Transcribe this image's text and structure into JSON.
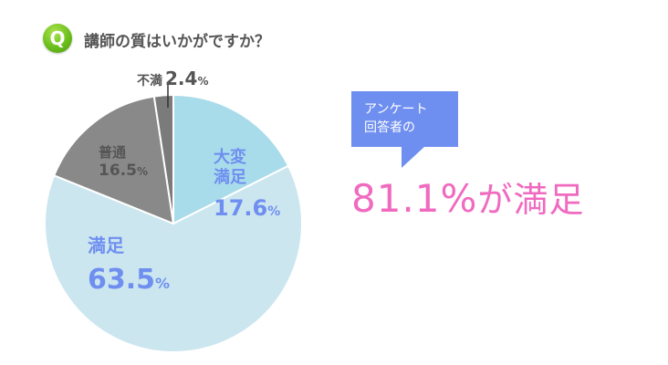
{
  "header": {
    "badge": "Q",
    "question": "講師の質はいかがですか？"
  },
  "chart_data": {
    "type": "pie",
    "title": "",
    "slices": [
      {
        "label": "大変満足",
        "value": 17.6,
        "color": "#a8dcea"
      },
      {
        "label": "満足",
        "value": 63.5,
        "color": "#cce6ef"
      },
      {
        "label": "普通",
        "value": 16.5,
        "color": "#898989"
      },
      {
        "label": "不満",
        "value": 2.4,
        "color": "#7b7b7b"
      }
    ]
  },
  "labels": {
    "very_satisfied": {
      "name_line1": "大変",
      "name_line2": "満足",
      "value": "17.6",
      "unit": "%"
    },
    "satisfied": {
      "name": "満足",
      "value": "63.5",
      "unit": "%"
    },
    "normal": {
      "name": "普通",
      "value": "16.5",
      "unit": "%"
    },
    "unsatisfied": {
      "name": "不満",
      "value": "2.4",
      "unit": "%"
    }
  },
  "callout": {
    "line1": "アンケート",
    "line2": "回答者の"
  },
  "summary": {
    "value": "81.1%",
    "suffix": "が満足"
  }
}
